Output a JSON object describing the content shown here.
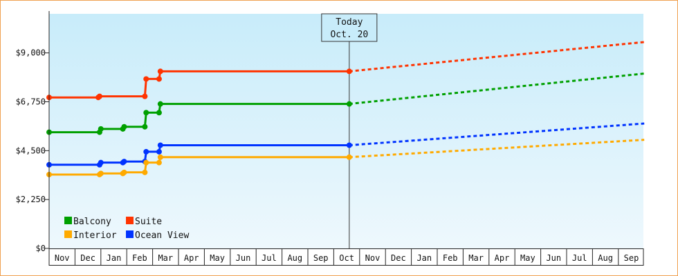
{
  "chart_data": {
    "type": "line",
    "title": "",
    "xlabel": "",
    "ylabel": "",
    "ylim": [
      0,
      10800
    ],
    "y_ticks": [
      {
        "value": 0,
        "label": "$0"
      },
      {
        "value": 2250,
        "label": "$2,250"
      },
      {
        "value": 4500,
        "label": "$4,500"
      },
      {
        "value": 6750,
        "label": "$6,750"
      },
      {
        "value": 9000,
        "label": "$9,000"
      }
    ],
    "x_ticks": [
      "Nov",
      "Dec",
      "Jan",
      "Feb",
      "Mar",
      "Apr",
      "May",
      "Jun",
      "Jul",
      "Aug",
      "Sep",
      "Oct",
      "Nov",
      "Dec",
      "Jan",
      "Feb",
      "Mar",
      "Apr",
      "May",
      "Jun",
      "Jul",
      "Aug",
      "Sep"
    ],
    "x_unit": "months from start of Nov (0 = Nov 1)",
    "today": {
      "x": 11.6,
      "line1": "Today",
      "line2": "Oct. 20"
    },
    "series": [
      {
        "name": "Suite",
        "color": "#ff3300",
        "points": [
          [
            0,
            6950
          ],
          [
            1.9,
            6950
          ],
          [
            1.95,
            7000
          ],
          [
            3.7,
            7000
          ],
          [
            3.75,
            7800
          ],
          [
            4.25,
            7800
          ],
          [
            4.3,
            8150
          ],
          [
            11.6,
            8150
          ]
        ],
        "projection": [
          [
            11.6,
            8150
          ],
          [
            23,
            9500
          ]
        ]
      },
      {
        "name": "Balcony",
        "color": "#00a000",
        "points": [
          [
            0,
            5350
          ],
          [
            1.95,
            5350
          ],
          [
            2.0,
            5500
          ],
          [
            2.85,
            5500
          ],
          [
            2.9,
            5600
          ],
          [
            3.7,
            5600
          ],
          [
            3.75,
            6250
          ],
          [
            4.25,
            6250
          ],
          [
            4.3,
            6650
          ],
          [
            11.6,
            6650
          ]
        ],
        "projection": [
          [
            11.6,
            6650
          ],
          [
            23,
            8050
          ]
        ]
      },
      {
        "name": "Ocean View",
        "color": "#0033ff",
        "points": [
          [
            0,
            3850
          ],
          [
            1.95,
            3850
          ],
          [
            2.0,
            3950
          ],
          [
            2.85,
            3950
          ],
          [
            2.9,
            4000
          ],
          [
            3.7,
            4000
          ],
          [
            3.75,
            4450
          ],
          [
            4.25,
            4450
          ],
          [
            4.3,
            4750
          ],
          [
            11.6,
            4750
          ]
        ],
        "projection": [
          [
            11.6,
            4750
          ],
          [
            23,
            5750
          ]
        ]
      },
      {
        "name": "Interior",
        "color": "#ffaa00",
        "points": [
          [
            0,
            3400
          ],
          [
            1.95,
            3400
          ],
          [
            2.0,
            3450
          ],
          [
            2.85,
            3450
          ],
          [
            2.9,
            3500
          ],
          [
            3.7,
            3500
          ],
          [
            3.75,
            3950
          ],
          [
            4.25,
            3950
          ],
          [
            4.3,
            4200
          ],
          [
            11.6,
            4200
          ]
        ],
        "projection": [
          [
            11.6,
            4200
          ],
          [
            23,
            5000
          ]
        ]
      }
    ],
    "legend": {
      "placement": "bottom-left",
      "items": [
        {
          "label": "Balcony",
          "color": "#00a000"
        },
        {
          "label": "Suite",
          "color": "#ff3300"
        },
        {
          "label": "Interior",
          "color": "#ffaa00"
        },
        {
          "label": "Ocean View",
          "color": "#0033ff"
        }
      ]
    },
    "grid": false,
    "background_gradient": [
      "#c8ecfa",
      "#eef8fd"
    ]
  }
}
